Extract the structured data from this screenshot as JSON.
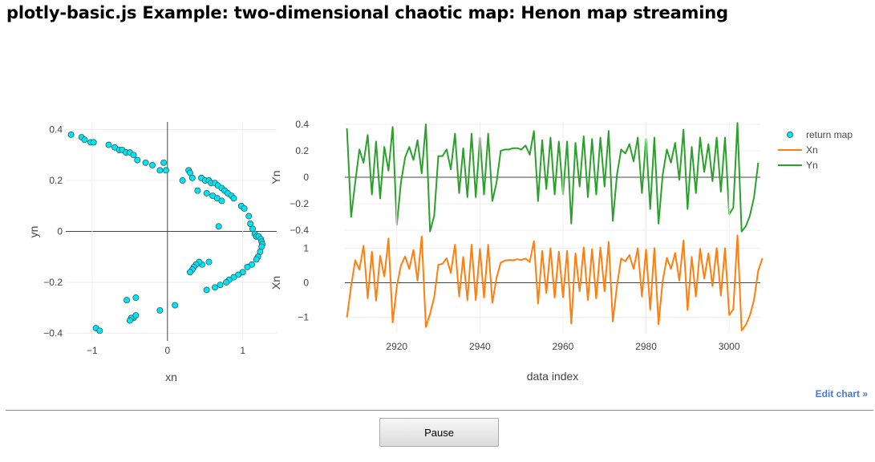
{
  "page": {
    "title": "plotly-basic.js Example: two-dimensional chaotic map: Henon map streaming",
    "edit_chart_label": "Edit chart »",
    "pause_label": "Pause"
  },
  "colors": {
    "return_map_fill": "#00e5ee",
    "return_map_stroke": "#1f4e5f",
    "xn_line": "#ff7f0e",
    "yn_line": "#2ca02c",
    "zero_line": "#444444",
    "grid": "#eeeeee",
    "tick_text": "#444444",
    "link": "#447adb"
  },
  "chart_data": [
    {
      "type": "scatter",
      "name": "return map",
      "xlabel": "xn",
      "ylabel": "yn",
      "xlim": [
        -1.35,
        1.45
      ],
      "ylim": [
        -0.43,
        0.43
      ],
      "xticks": [
        -1,
        0,
        1
      ],
      "xtick_labels": [
        "−1",
        "0",
        "1"
      ],
      "yticks": [
        -0.4,
        -0.2,
        0,
        0.2,
        0.4
      ],
      "ytick_labels": [
        "−0.4",
        "−0.2",
        "0",
        "0.2",
        "0.4"
      ],
      "x": [
        -1.28,
        -1.14,
        -1.1,
        -1.02,
        -0.98,
        -0.78,
        -0.7,
        -0.64,
        -0.6,
        -0.55,
        -0.5,
        -0.45,
        -0.4,
        -0.29,
        -0.2,
        -0.1,
        -0.05,
        -0.02,
        0.28,
        0.3,
        0.33,
        0.2,
        0.45,
        0.5,
        0.55,
        0.58,
        0.63,
        0.67,
        0.72,
        0.4,
        0.52,
        0.6,
        0.66,
        0.72,
        0.76,
        0.8,
        0.85,
        0.88,
        0.98,
        1.02,
        1.08,
        1.1,
        1.13,
        1.16,
        1.18,
        1.21,
        1.24,
        1.25,
        1.26,
        1.25,
        1.23,
        1.2,
        1.18,
        1.12,
        1.06,
        1.0,
        0.94,
        0.88,
        0.82,
        0.78,
        0.7,
        0.63,
        0.52,
        0.46,
        0.42,
        0.38,
        0.35,
        0.33,
        0.3,
        0.55,
        0.68,
        0.1,
        -0.1,
        -0.42,
        -0.45,
        -0.48,
        -0.5,
        -0.42,
        -0.54,
        -0.95,
        -0.9
      ],
      "y": [
        0.38,
        0.37,
        0.36,
        0.35,
        0.35,
        0.34,
        0.33,
        0.32,
        0.32,
        0.31,
        0.31,
        0.3,
        0.28,
        0.27,
        0.26,
        0.24,
        0.27,
        0.24,
        0.24,
        0.23,
        0.21,
        0.2,
        0.21,
        0.2,
        0.2,
        0.19,
        0.19,
        0.18,
        0.17,
        0.16,
        0.15,
        0.14,
        0.13,
        0.12,
        0.16,
        0.15,
        0.14,
        0.13,
        0.1,
        0.09,
        0.06,
        0.03,
        0.01,
        -0.01,
        -0.02,
        -0.02,
        -0.03,
        -0.04,
        -0.05,
        -0.06,
        -0.08,
        -0.1,
        -0.11,
        -0.13,
        -0.14,
        -0.16,
        -0.17,
        -0.18,
        -0.19,
        -0.2,
        -0.21,
        -0.22,
        -0.23,
        -0.13,
        -0.12,
        -0.13,
        -0.14,
        -0.15,
        -0.16,
        -0.12,
        0.02,
        -0.29,
        -0.31,
        -0.26,
        -0.34,
        -0.34,
        -0.35,
        -0.33,
        -0.27,
        -0.38,
        -0.39
      ]
    },
    {
      "type": "line",
      "name": "Yn",
      "ylabel": "Yn",
      "xlim": [
        2907.5,
        3007.5
      ],
      "ylim": [
        -0.4,
        0.4
      ],
      "yticks": [
        -0.4,
        -0.2,
        0,
        0.2,
        0.4
      ],
      "ytick_labels": [
        "−0.4",
        "−0.2",
        "0",
        "0.2",
        "0.4"
      ],
      "x_start": 2908,
      "values": [
        0.37,
        -0.3,
        -0.04,
        0.21,
        0.11,
        0.32,
        -0.13,
        0.27,
        -0.16,
        0.23,
        0.05,
        0.38,
        -0.36,
        -0.04,
        0.15,
        0.23,
        0.13,
        0.28,
        0.03,
        0.4,
        -0.41,
        -0.29,
        0.16,
        0.16,
        0.21,
        0.06,
        0.33,
        -0.12,
        0.22,
        -0.15,
        0.33,
        -0.15,
        0.3,
        -0.13,
        0.33,
        -0.18,
        -0.04,
        0.2,
        0.21,
        0.21,
        0.22,
        0.22,
        0.21,
        0.24,
        0.17,
        0.35,
        -0.18,
        0.28,
        -0.09,
        0.3,
        -0.13,
        0.27,
        -0.13,
        0.27,
        -0.35,
        0.26,
        -0.07,
        0.31,
        -0.15,
        0.29,
        -0.13,
        0.3,
        -0.07,
        0.35,
        -0.33,
        0.02,
        0.21,
        0.18,
        0.25,
        0.12,
        0.3,
        -0.12,
        0.29,
        -0.24,
        0.3,
        -0.35,
        0.02,
        0.21,
        0.11,
        0.26,
        -0.02,
        0.36,
        -0.24,
        0.23,
        -0.12,
        0.3,
        0.04,
        0.25,
        -0.03,
        0.3,
        -0.11,
        0.3,
        -0.28,
        -0.23,
        0.41,
        -0.41,
        -0.37,
        -0.29,
        -0.15,
        0.11
      ]
    },
    {
      "type": "line",
      "name": "Xn",
      "ylabel": "Xn",
      "xlabel": "data index",
      "xlim": [
        2907.5,
        3007.5
      ],
      "ylim": [
        -1.45,
        1.45
      ],
      "yticks": [
        -1,
        0,
        1
      ],
      "ytick_labels": [
        "−1",
        "0",
        "1"
      ],
      "xticks": [
        2920,
        2940,
        2960,
        2980,
        3000
      ],
      "xtick_labels": [
        "2920",
        "2940",
        "2960",
        "2980",
        "3000"
      ],
      "x_start": 2908,
      "values": [
        -1.0,
        -0.1,
        0.65,
        0.38,
        1.07,
        -0.45,
        0.9,
        -0.52,
        0.78,
        0.18,
        1.28,
        -1.15,
        -0.1,
        0.5,
        0.76,
        0.4,
        0.95,
        0.06,
        1.34,
        -1.28,
        -0.9,
        -0.42,
        0.52,
        0.55,
        0.71,
        0.28,
        1.1,
        -0.4,
        0.75,
        -0.5,
        1.1,
        -0.5,
        0.98,
        -0.43,
        1.1,
        -0.58,
        0.14,
        0.58,
        0.64,
        0.66,
        0.65,
        0.68,
        0.66,
        0.7,
        0.6,
        1.2,
        -0.6,
        0.92,
        -0.3,
        1.0,
        -0.43,
        0.9,
        -0.42,
        0.92,
        -1.18,
        0.85,
        -0.25,
        1.02,
        -0.5,
        0.97,
        -0.45,
        1.02,
        -0.25,
        1.18,
        -1.12,
        -0.08,
        0.7,
        0.62,
        0.8,
        0.4,
        1.0,
        -0.4,
        0.96,
        -0.78,
        1.0,
        -1.2,
        0.06,
        0.72,
        0.4,
        0.86,
        0.06,
        1.22,
        -0.79,
        0.75,
        -0.4,
        0.98,
        0.12,
        0.85,
        -0.1,
        1.0,
        -0.37,
        1.0,
        -0.93,
        -0.77,
        1.37,
        -1.38,
        -1.22,
        -0.95,
        -0.49,
        0.35,
        0.71
      ]
    }
  ],
  "legend": {
    "items": [
      {
        "label": "return map",
        "kind": "marker",
        "color": "#00e5ee"
      },
      {
        "label": "Xn",
        "kind": "line",
        "color": "#ff7f0e"
      },
      {
        "label": "Yn",
        "kind": "line",
        "color": "#2ca02c"
      }
    ]
  }
}
